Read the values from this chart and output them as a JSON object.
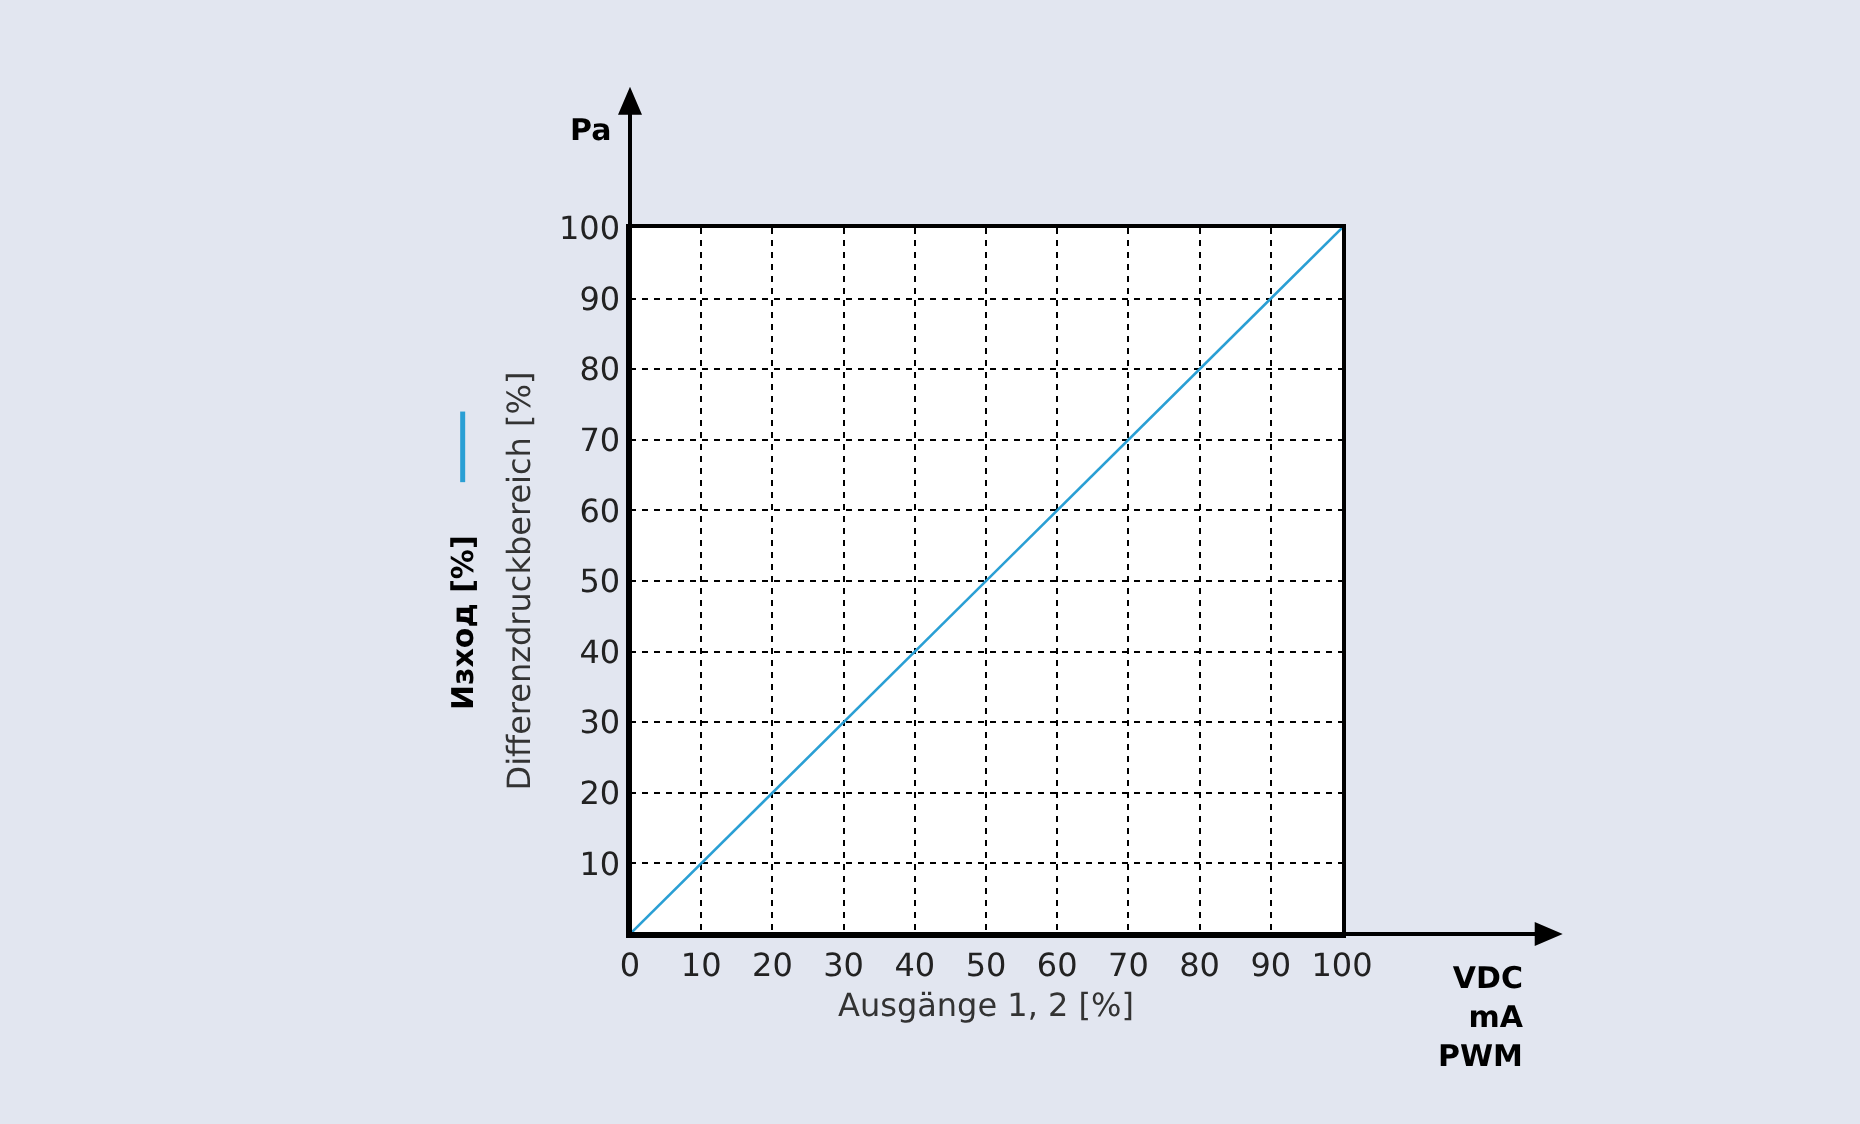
{
  "chart_data": {
    "type": "line",
    "xlabel": "Ausgänge 1, 2 [%]",
    "ylabel": "Differenzdruckbereich [%]",
    "x": [
      0,
      100
    ],
    "series": [
      {
        "name": "Изход [%]",
        "color": "#2a9fd4",
        "values": [
          0,
          100
        ]
      }
    ],
    "xlim": [
      0,
      100
    ],
    "ylim": [
      0,
      100
    ],
    "xticks": [
      0,
      10,
      20,
      30,
      40,
      50,
      60,
      70,
      80,
      90,
      100
    ],
    "yticks": [
      10,
      20,
      30,
      40,
      50,
      60,
      70,
      80,
      90,
      100
    ],
    "grid": true,
    "line_style": "solid",
    "marker": "none",
    "legend": "left",
    "annotations": [
      "Pa",
      "VDC\nmA\nPWM"
    ]
  }
}
